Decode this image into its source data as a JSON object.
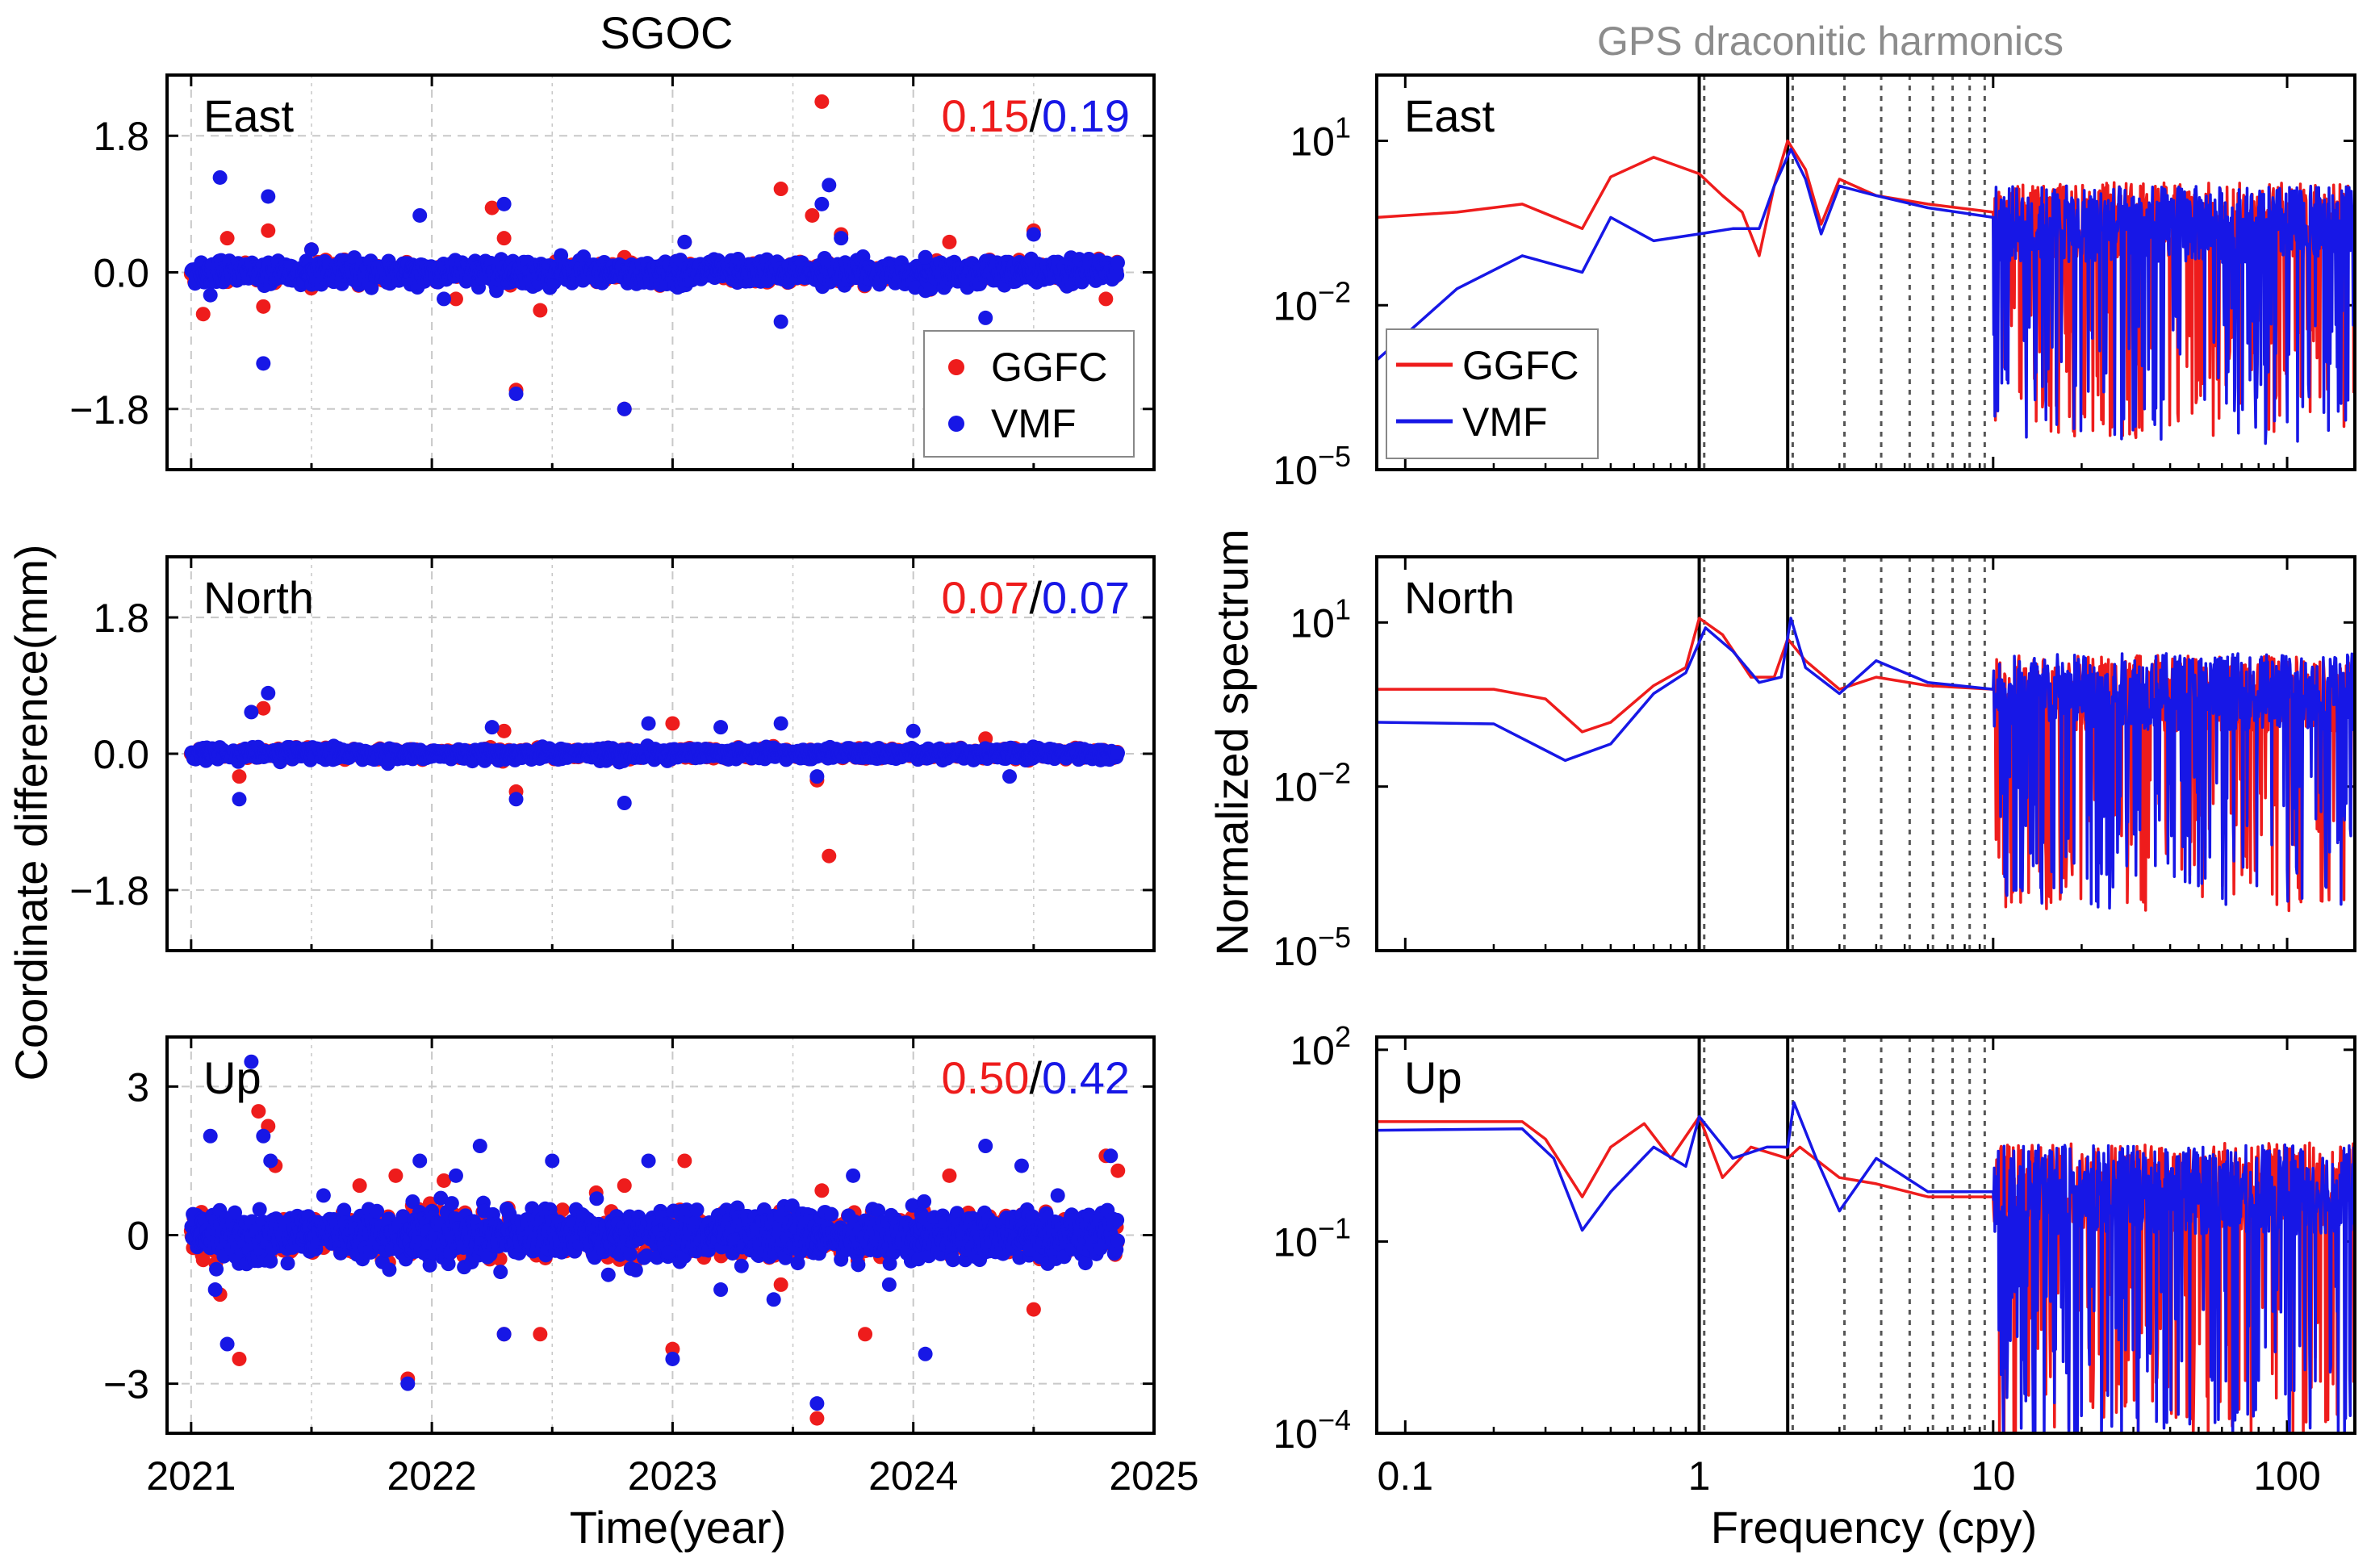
{
  "colors": {
    "ggfc": "#ee1c1c",
    "vmf": "#1717e6",
    "grid": "#c8c8c8",
    "axis": "#000000",
    "harmonic": "#555555"
  },
  "left_title": "SGOC",
  "right_title": "GPS draconitic harmonics",
  "left_ylabel": "Coordinate difference(mm)",
  "left_xlabel": "Time(year)",
  "right_ylabel": "Normalized spectrum",
  "right_xlabel": "Frequency (cpy)",
  "legend": {
    "ggfc": "GGFC",
    "vmf": "VMF"
  },
  "chart_data": [
    {
      "type": "scatter",
      "panel": "left-east",
      "component": "East",
      "stat_ggfc": "0.15",
      "stat_sep": "/",
      "stat_vmf": "0.19",
      "xlim": [
        2020.9,
        2025.0
      ],
      "ylim": [
        -2.6,
        2.6
      ],
      "yticks": [
        1.8,
        0.0,
        -1.8
      ],
      "yticklabels": [
        "1.8",
        "0.0",
        "−1.8"
      ],
      "xticks": [
        2021,
        2022,
        2023,
        2024,
        2025
      ],
      "xticklabels": [
        "2021",
        "2022",
        "2023",
        "2024",
        "2025"
      ],
      "noise_ggfc": 0.06,
      "noise_vmf": 0.07,
      "series": [
        {
          "name": "GGFC",
          "outliers": [
            [
              2021.05,
              -0.55
            ],
            [
              2021.15,
              0.45
            ],
            [
              2021.32,
              0.55
            ],
            [
              2021.3,
              -0.45
            ],
            [
              2021.5,
              0.3
            ],
            [
              2022.1,
              -0.35
            ],
            [
              2022.3,
              0.45
            ],
            [
              2022.45,
              -0.5
            ],
            [
              2022.8,
              0.2
            ],
            [
              2023.05,
              0.4
            ],
            [
              2023.45,
              1.1
            ],
            [
              2023.58,
              0.75
            ],
            [
              2023.62,
              2.25
            ],
            [
              2023.7,
              0.5
            ],
            [
              2024.15,
              0.4
            ],
            [
              2024.5,
              0.55
            ],
            [
              2024.8,
              -0.35
            ],
            [
              2022.25,
              0.85
            ],
            [
              2022.35,
              -1.55
            ],
            [
              2022.8,
              -1.8
            ]
          ]
        },
        {
          "name": "VMF",
          "outliers": [
            [
              2021.12,
              1.25
            ],
            [
              2021.32,
              1.0
            ],
            [
              2021.3,
              -1.2
            ],
            [
              2021.08,
              -0.3
            ],
            [
              2021.5,
              0.3
            ],
            [
              2021.95,
              0.75
            ],
            [
              2022.05,
              -0.35
            ],
            [
              2022.3,
              0.9
            ],
            [
              2022.35,
              -1.6
            ],
            [
              2022.8,
              -1.8
            ],
            [
              2023.05,
              0.4
            ],
            [
              2023.45,
              -0.65
            ],
            [
              2023.62,
              0.9
            ],
            [
              2023.65,
              1.15
            ],
            [
              2023.7,
              0.45
            ],
            [
              2024.3,
              -0.6
            ],
            [
              2024.5,
              0.5
            ],
            [
              2024.05,
              0.2
            ]
          ]
        }
      ]
    },
    {
      "type": "scatter",
      "panel": "left-north",
      "component": "North",
      "stat_ggfc": "0.07",
      "stat_sep": "/",
      "stat_vmf": "0.07",
      "xlim": [
        2020.9,
        2025.0
      ],
      "ylim": [
        -2.6,
        2.6
      ],
      "yticks": [
        1.8,
        0.0,
        -1.8
      ],
      "yticklabels": [
        "1.8",
        "0.0",
        "−1.8"
      ],
      "xticks": [
        2021,
        2022,
        2023,
        2024,
        2025
      ],
      "xticklabels": [
        "2021",
        "2022",
        "2023",
        "2024",
        "2025"
      ],
      "noise_ggfc": 0.03,
      "noise_vmf": 0.035,
      "series": [
        {
          "name": "GGFC",
          "outliers": [
            [
              2021.3,
              0.6
            ],
            [
              2021.2,
              -0.3
            ],
            [
              2022.3,
              0.3
            ],
            [
              2022.35,
              -0.5
            ],
            [
              2023.0,
              0.4
            ],
            [
              2023.6,
              -0.35
            ],
            [
              2023.65,
              -1.35
            ],
            [
              2024.3,
              0.2
            ]
          ]
        },
        {
          "name": "VMF",
          "outliers": [
            [
              2021.32,
              0.8
            ],
            [
              2021.25,
              0.55
            ],
            [
              2021.2,
              -0.6
            ],
            [
              2022.25,
              0.35
            ],
            [
              2022.35,
              -0.6
            ],
            [
              2022.8,
              -0.65
            ],
            [
              2022.9,
              0.4
            ],
            [
              2023.2,
              0.35
            ],
            [
              2023.45,
              0.4
            ],
            [
              2023.6,
              -0.3
            ],
            [
              2024.0,
              0.3
            ],
            [
              2024.4,
              -0.3
            ]
          ]
        }
      ]
    },
    {
      "type": "scatter",
      "panel": "left-up",
      "component": "Up",
      "stat_ggfc": "0.50",
      "stat_sep": "/",
      "stat_vmf": "0.42",
      "xlim": [
        2020.9,
        2025.0
      ],
      "ylim": [
        -4.0,
        4.0
      ],
      "yticks": [
        3,
        0,
        -3
      ],
      "yticklabels": [
        "3",
        "0",
        "−3"
      ],
      "xticks": [
        2021,
        2022,
        2023,
        2024,
        2025
      ],
      "xticklabels": [
        "2021",
        "2022",
        "2023",
        "2024",
        "2025"
      ],
      "noise_ggfc": 0.2,
      "noise_vmf": 0.22,
      "series": [
        {
          "name": "GGFC",
          "outliers": [
            [
              2021.05,
              -0.5
            ],
            [
              2021.12,
              -1.2
            ],
            [
              2021.2,
              -2.5
            ],
            [
              2021.28,
              2.5
            ],
            [
              2021.32,
              2.2
            ],
            [
              2021.35,
              1.4
            ],
            [
              2021.7,
              1.0
            ],
            [
              2021.9,
              -2.9
            ],
            [
              2021.85,
              1.2
            ],
            [
              2022.05,
              1.1
            ],
            [
              2022.3,
              -2.0
            ],
            [
              2022.45,
              -2.0
            ],
            [
              2022.8,
              1.0
            ],
            [
              2023.0,
              -2.3
            ],
            [
              2023.05,
              1.5
            ],
            [
              2023.45,
              -1.0
            ],
            [
              2023.6,
              -3.7
            ],
            [
              2023.62,
              0.9
            ],
            [
              2023.8,
              -2.0
            ],
            [
              2024.15,
              1.2
            ],
            [
              2024.5,
              -1.5
            ],
            [
              2024.8,
              1.6
            ],
            [
              2024.85,
              1.3
            ]
          ]
        },
        {
          "name": "VMF",
          "outliers": [
            [
              2021.08,
              2.0
            ],
            [
              2021.1,
              -1.1
            ],
            [
              2021.15,
              -2.2
            ],
            [
              2021.25,
              3.5
            ],
            [
              2021.3,
              2.0
            ],
            [
              2021.33,
              1.5
            ],
            [
              2021.55,
              0.8
            ],
            [
              2021.9,
              -3.0
            ],
            [
              2021.95,
              1.5
            ],
            [
              2022.1,
              1.2
            ],
            [
              2022.2,
              1.8
            ],
            [
              2022.3,
              -2.0
            ],
            [
              2022.5,
              1.5
            ],
            [
              2022.9,
              1.5
            ],
            [
              2023.0,
              -2.5
            ],
            [
              2023.2,
              -1.1
            ],
            [
              2023.42,
              -1.3
            ],
            [
              2023.6,
              -3.4
            ],
            [
              2023.75,
              1.2
            ],
            [
              2023.9,
              -1.0
            ],
            [
              2024.05,
              -2.4
            ],
            [
              2024.3,
              1.8
            ],
            [
              2024.45,
              1.4
            ],
            [
              2024.6,
              0.8
            ],
            [
              2024.82,
              1.6
            ]
          ]
        }
      ]
    },
    {
      "type": "line",
      "panel": "right-east",
      "component": "East",
      "xscale": "log",
      "yscale": "log",
      "xlim": [
        0.08,
        170
      ],
      "ylim_exp": [
        -5,
        2.2
      ],
      "yticks_exp": [
        1,
        -2,
        -5
      ],
      "ymant": "10",
      "xticks": [
        0.1,
        1,
        10,
        100
      ],
      "xticklabels": [
        "0.1",
        "1",
        "10",
        "100"
      ],
      "series": [
        {
          "name": "GGFC",
          "points": [
            [
              0.08,
              0.4
            ],
            [
              0.15,
              0.5
            ],
            [
              0.25,
              0.7
            ],
            [
              0.4,
              0.25
            ],
            [
              0.5,
              2.2
            ],
            [
              0.7,
              5
            ],
            [
              1.0,
              2.5
            ],
            [
              1.2,
              1.0
            ],
            [
              1.4,
              0.5
            ],
            [
              1.6,
              0.08
            ],
            [
              1.8,
              1.5
            ],
            [
              2.0,
              10
            ],
            [
              2.3,
              3
            ],
            [
              2.6,
              0.3
            ],
            [
              3.0,
              2
            ],
            [
              4.0,
              1
            ],
            [
              6,
              0.7
            ],
            [
              10,
              0.5
            ]
          ]
        },
        {
          "name": "VMF",
          "points": [
            [
              0.08,
              0.001
            ],
            [
              0.15,
              0.02
            ],
            [
              0.25,
              0.08
            ],
            [
              0.4,
              0.04
            ],
            [
              0.5,
              0.4
            ],
            [
              0.7,
              0.15
            ],
            [
              1.0,
              0.2
            ],
            [
              1.3,
              0.25
            ],
            [
              1.6,
              0.25
            ],
            [
              1.8,
              1.5
            ],
            [
              2.05,
              7
            ],
            [
              2.3,
              2
            ],
            [
              2.6,
              0.2
            ],
            [
              3.0,
              1.5
            ],
            [
              4.0,
              1
            ],
            [
              6,
              0.6
            ],
            [
              10,
              0.4
            ]
          ]
        }
      ],
      "hf_level_ggfc": 0.35,
      "hf_level_vmf": 0.3
    },
    {
      "type": "line",
      "panel": "right-north",
      "component": "North",
      "xscale": "log",
      "yscale": "log",
      "xlim": [
        0.08,
        170
      ],
      "ylim_exp": [
        -5,
        2.2
      ],
      "yticks_exp": [
        1,
        -2,
        -5
      ],
      "ymant": "10",
      "xticks": [
        0.1,
        1,
        10,
        100
      ],
      "xticklabels": [
        "0.1",
        "1",
        "10",
        "100"
      ],
      "series": [
        {
          "name": "GGFC",
          "points": [
            [
              0.08,
              0.6
            ],
            [
              0.2,
              0.6
            ],
            [
              0.3,
              0.4
            ],
            [
              0.4,
              0.1
            ],
            [
              0.5,
              0.15
            ],
            [
              0.7,
              0.7
            ],
            [
              0.9,
              1.5
            ],
            [
              1.0,
              12
            ],
            [
              1.2,
              6
            ],
            [
              1.5,
              1
            ],
            [
              1.8,
              1
            ],
            [
              2.0,
              5
            ],
            [
              2.3,
              2
            ],
            [
              3,
              0.6
            ],
            [
              4,
              1
            ],
            [
              6,
              0.7
            ],
            [
              10,
              0.6
            ]
          ]
        },
        {
          "name": "VMF",
          "points": [
            [
              0.08,
              0.15
            ],
            [
              0.2,
              0.14
            ],
            [
              0.35,
              0.03
            ],
            [
              0.5,
              0.06
            ],
            [
              0.7,
              0.5
            ],
            [
              0.9,
              1.2
            ],
            [
              1.05,
              8
            ],
            [
              1.3,
              3
            ],
            [
              1.6,
              0.8
            ],
            [
              1.9,
              1
            ],
            [
              2.05,
              12
            ],
            [
              2.3,
              1.5
            ],
            [
              3,
              0.5
            ],
            [
              4,
              2
            ],
            [
              6,
              0.8
            ],
            [
              10,
              0.6
            ]
          ]
        }
      ],
      "hf_level_ggfc": 0.5,
      "hf_level_vmf": 0.55
    },
    {
      "type": "line",
      "panel": "right-up",
      "component": "Up",
      "xscale": "log",
      "yscale": "log",
      "xlim": [
        0.08,
        170
      ],
      "ylim_exp": [
        -4,
        2.2
      ],
      "yticks_exp": [
        2,
        -1,
        -4
      ],
      "ymant": "10",
      "xticks": [
        0.1,
        1,
        10,
        100
      ],
      "xticklabels": [
        "0.1",
        "1",
        "10",
        "100"
      ],
      "series": [
        {
          "name": "GGFC",
          "points": [
            [
              0.08,
              7.5
            ],
            [
              0.25,
              7.5
            ],
            [
              0.3,
              4
            ],
            [
              0.4,
              0.5
            ],
            [
              0.5,
              3
            ],
            [
              0.65,
              7
            ],
            [
              0.8,
              2
            ],
            [
              1.0,
              9
            ],
            [
              1.2,
              1
            ],
            [
              1.5,
              3
            ],
            [
              2.0,
              2
            ],
            [
              2.2,
              3
            ],
            [
              3,
              1
            ],
            [
              4,
              0.8
            ],
            [
              6,
              0.5
            ],
            [
              10,
              0.5
            ]
          ]
        },
        {
          "name": "VMF",
          "points": [
            [
              0.08,
              5.5
            ],
            [
              0.25,
              5.8
            ],
            [
              0.32,
              2
            ],
            [
              0.4,
              0.15
            ],
            [
              0.5,
              0.6
            ],
            [
              0.7,
              3
            ],
            [
              0.9,
              1.5
            ],
            [
              1.0,
              9
            ],
            [
              1.3,
              2
            ],
            [
              1.7,
              3
            ],
            [
              2.0,
              3
            ],
            [
              2.1,
              15
            ],
            [
              2.5,
              2
            ],
            [
              3,
              0.3
            ],
            [
              4,
              2
            ],
            [
              6,
              0.6
            ],
            [
              10,
              0.6
            ]
          ]
        }
      ],
      "hf_level_ggfc": 0.7,
      "hf_level_vmf": 0.65
    }
  ],
  "harmonics_cpy": [
    1.04,
    2.08,
    3.12,
    4.16,
    5.2,
    6.24,
    7.28,
    8.32,
    9.36
  ],
  "fundamentals_cpy": [
    1.0,
    2.0
  ]
}
